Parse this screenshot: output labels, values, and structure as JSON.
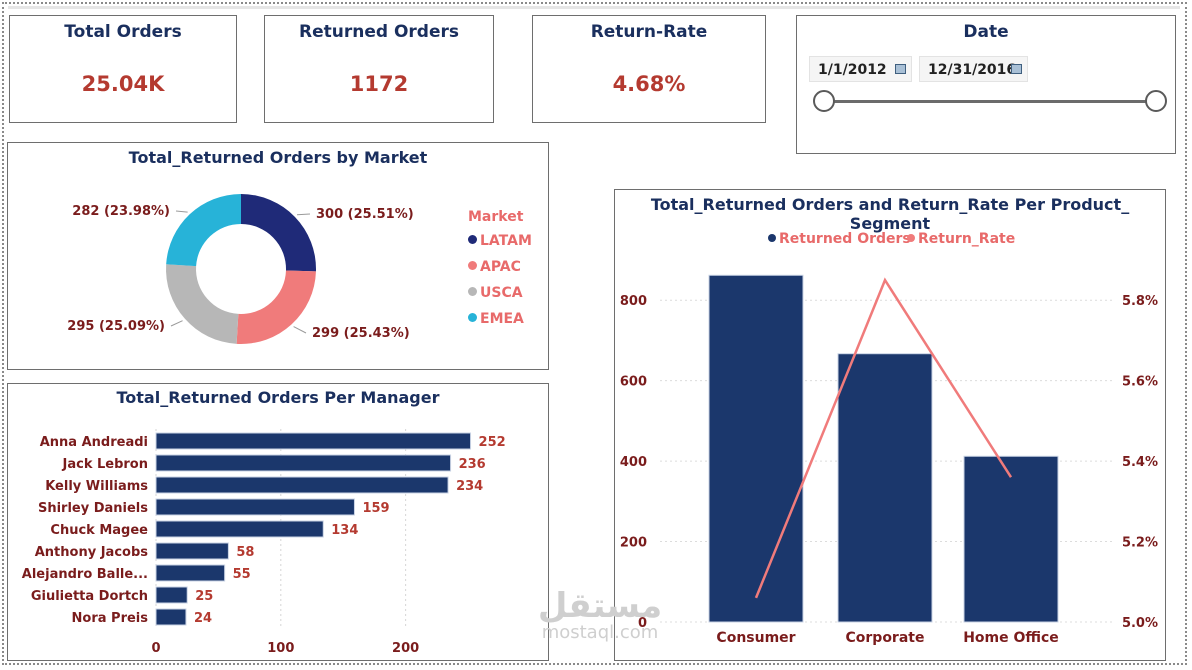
{
  "kpis": {
    "total_orders": {
      "title": "Total Orders",
      "value": "25.04K"
    },
    "returned_orders": {
      "title": "Returned Orders",
      "value": "1172"
    },
    "return_rate": {
      "title": "Return-Rate",
      "value": "4.68%"
    }
  },
  "date_filter": {
    "title": "Date",
    "start": "1/1/2012",
    "end": "12/31/2016",
    "icon": "calendar-icon"
  },
  "watermark": {
    "arabic": "مستقل",
    "latin": "mostaql.com"
  },
  "colors": {
    "navy": "#1b376c",
    "coral": "#f07b7b",
    "gray": "#b7b7b7",
    "cyan": "#27b3d8",
    "value_red": "#b43a30",
    "label_dark": "#7a1c1c"
  },
  "chart_data": [
    {
      "id": "market",
      "type": "pie",
      "title": "Total_Returned Orders by Market",
      "legend_title": "Market",
      "legend_position": "right",
      "categories": [
        "LATAM",
        "APAC",
        "USCA",
        "EMEA"
      ],
      "values": [
        300,
        299,
        295,
        282
      ],
      "labels": [
        "300 (25.51%)",
        "299 (25.43%)",
        "295 (25.09%)",
        "282 (23.98%)"
      ],
      "colors": [
        "#1f2a78",
        "#f07b7b",
        "#b7b7b7",
        "#27b3d8"
      ]
    },
    {
      "id": "manager",
      "type": "bar",
      "orientation": "horizontal",
      "title": "Total_Returned Orders Per Manager",
      "categories": [
        "Anna Andreadi",
        "Jack Lebron",
        "Kelly Williams",
        "Shirley Daniels",
        "Chuck Magee",
        "Anthony Jacobs",
        "Alejandro Balle...",
        "Giulietta Dortch",
        "Nora Preis"
      ],
      "values": [
        252,
        236,
        234,
        159,
        134,
        58,
        55,
        25,
        24
      ],
      "xlim": [
        0,
        270
      ],
      "xticks": [
        "0",
        "100",
        "200"
      ],
      "grid": true
    },
    {
      "id": "segment",
      "type": "bar",
      "title": "Total_Returned Orders and Return_Rate Per Product_ Segment",
      "categories": [
        "Consumer",
        "Corporate",
        "Home Office"
      ],
      "series": [
        {
          "name": "Returned Orders",
          "type": "bar",
          "values": [
            862,
            667,
            412
          ],
          "axis": "left"
        },
        {
          "name": "Return_Rate",
          "type": "line",
          "values": [
            5.06,
            5.85,
            5.36
          ],
          "axis": "right"
        }
      ],
      "ylim": [
        0,
        900
      ],
      "yticks": [
        "0",
        "200",
        "400",
        "600",
        "800"
      ],
      "y2lim": [
        5.0,
        5.9
      ],
      "y2ticks": [
        "5.0%",
        "5.2%",
        "5.4%",
        "5.6%",
        "5.8%"
      ],
      "legend_position": "top",
      "grid": true
    }
  ]
}
